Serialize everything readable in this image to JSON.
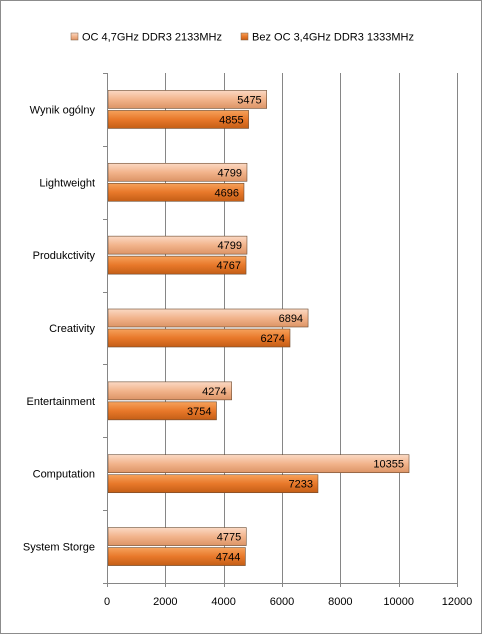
{
  "chart_data": {
    "type": "bar",
    "orientation": "horizontal",
    "title": "",
    "xlabel": "",
    "ylabel": "",
    "xlim": [
      0,
      12000
    ],
    "x_ticks": [
      0,
      2000,
      4000,
      6000,
      8000,
      10000,
      12000
    ],
    "x_tick_labels": [
      "0",
      "2000",
      "4000",
      "6000",
      "8000",
      "10000",
      "12000"
    ],
    "grid": "vertical major gridlines",
    "legend_position": "top",
    "categories": [
      "Wynik ogólny",
      "Lightweight",
      "Produkctivity",
      "Creativity",
      "Entertainment",
      "Computation",
      "System Storge"
    ],
    "series": [
      {
        "name": "OC 4,7GHz DDR3 2133MHz",
        "color": "#f2b48c",
        "values": [
          5475,
          4799,
          4799,
          6894,
          4274,
          10355,
          4775
        ]
      },
      {
        "name": "Bez OC 3,4GHz DDR3 1333MHz",
        "color": "#e8782a",
        "values": [
          4855,
          4696,
          4767,
          6274,
          3754,
          7233,
          4744
        ]
      }
    ]
  }
}
